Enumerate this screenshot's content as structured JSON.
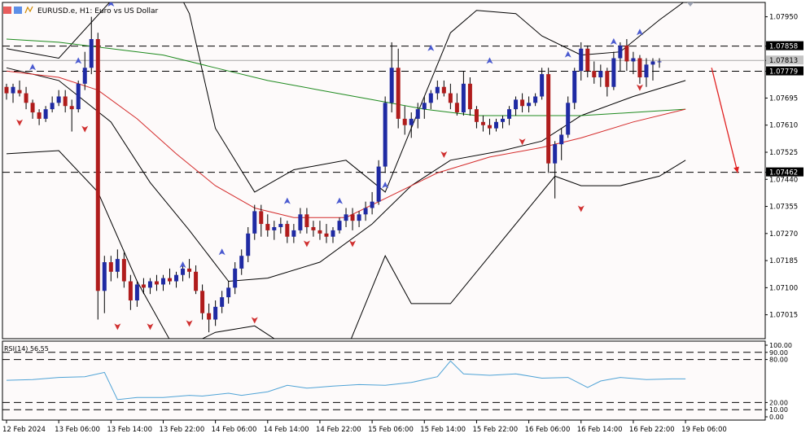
{
  "chart_data": {
    "type": "candlestick",
    "title": "EURUSD.e, H1:  Euro vs US Dollar",
    "price_axis": {
      "ticks": [
        1.0795,
        1.07858,
        1.07813,
        1.07779,
        1.07695,
        1.0761,
        1.07525,
        1.07462,
        1.0744,
        1.07355,
        1.0727,
        1.07185,
        1.071,
        1.07015
      ],
      "labels": [
        "1.07950",
        "1.07858",
        "1.07813",
        "1.07779",
        "1.07695",
        "1.07610",
        "1.07525",
        "1.07462",
        "1.07440",
        "1.07355",
        "1.07270",
        "1.07185",
        "1.07100",
        "1.07015"
      ],
      "ylim": [
        1.0694,
        1.07995
      ]
    },
    "horizontal_levels": [
      1.07858,
      1.07779,
      1.07462
    ],
    "highlighted_labels": [
      {
        "price": 1.07858,
        "label": "1.07858"
      },
      {
        "price": 1.07813,
        "label": "1.07813"
      },
      {
        "price": 1.07779,
        "label": "1.07779"
      },
      {
        "price": 1.07462,
        "label": "1.07462"
      }
    ],
    "time_axis": {
      "labels": [
        "12 Feb 2024",
        "13 Feb 06:00",
        "13 Feb 14:00",
        "13 Feb 22:00",
        "14 Feb 06:00",
        "14 Feb 14:00",
        "14 Feb 22:00",
        "15 Feb 06:00",
        "15 Feb 14:00",
        "15 Feb 22:00",
        "16 Feb 06:00",
        "16 Feb 14:00",
        "16 Feb 22:00",
        "19 Feb 06:00"
      ],
      "label_bar_index": [
        0,
        8,
        16,
        24,
        32,
        40,
        48,
        56,
        64,
        72,
        80,
        88,
        96,
        104
      ]
    },
    "candles": [
      [
        1.0773,
        1.0774,
        1.0769,
        1.0771
      ],
      [
        1.0771,
        1.0774,
        1.0768,
        1.0773
      ],
      [
        1.0772,
        1.0775,
        1.077,
        1.0771
      ],
      [
        1.0771,
        1.0773,
        1.0766,
        1.0768
      ],
      [
        1.0768,
        1.0769,
        1.0763,
        1.0765
      ],
      [
        1.0765,
        1.0766,
        1.0761,
        1.0763
      ],
      [
        1.0763,
        1.0767,
        1.0762,
        1.0766
      ],
      [
        1.0766,
        1.077,
        1.0765,
        1.0768
      ],
      [
        1.0768,
        1.0772,
        1.0767,
        1.077
      ],
      [
        1.077,
        1.0772,
        1.0765,
        1.0767
      ],
      [
        1.0767,
        1.0769,
        1.0759,
        1.0766
      ],
      [
        1.0766,
        1.0775,
        1.0765,
        1.0774
      ],
      [
        1.0774,
        1.0784,
        1.0772,
        1.0779
      ],
      [
        1.0779,
        1.0795,
        1.0777,
        1.0788
      ],
      [
        1.0788,
        1.079,
        1.07,
        1.0709
      ],
      [
        1.0709,
        1.072,
        1.0702,
        1.0718
      ],
      [
        1.0718,
        1.072,
        1.0712,
        1.0715
      ],
      [
        1.0715,
        1.0722,
        1.0713,
        1.0719
      ],
      [
        1.0719,
        1.0721,
        1.071,
        1.0712
      ],
      [
        1.0712,
        1.0714,
        1.0703,
        1.0706
      ],
      [
        1.0706,
        1.0712,
        1.0704,
        1.0711
      ],
      [
        1.0711,
        1.0713,
        1.0708,
        1.071
      ],
      [
        1.071,
        1.0713,
        1.0708,
        1.0712
      ],
      [
        1.0712,
        1.0714,
        1.0709,
        1.0711
      ],
      [
        1.0711,
        1.0714,
        1.0709,
        1.0713
      ],
      [
        1.0713,
        1.0716,
        1.0711,
        1.0712
      ],
      [
        1.0712,
        1.0715,
        1.071,
        1.0714
      ],
      [
        1.0714,
        1.0717,
        1.0712,
        1.0716
      ],
      [
        1.0716,
        1.0719,
        1.0713,
        1.0715
      ],
      [
        1.0715,
        1.0717,
        1.0708,
        1.0709
      ],
      [
        1.0709,
        1.0711,
        1.07,
        1.0702
      ],
      [
        1.0702,
        1.0705,
        1.0696,
        1.07
      ],
      [
        1.07,
        1.0706,
        1.0698,
        1.0704
      ],
      [
        1.0704,
        1.0709,
        1.0702,
        1.0707
      ],
      [
        1.0707,
        1.0712,
        1.0705,
        1.071
      ],
      [
        1.071,
        1.0718,
        1.0708,
        1.0716
      ],
      [
        1.0716,
        1.0722,
        1.0714,
        1.072
      ],
      [
        1.072,
        1.0729,
        1.0718,
        1.0727
      ],
      [
        1.0727,
        1.0736,
        1.0725,
        1.0734
      ],
      [
        1.0734,
        1.0736,
        1.0726,
        1.073
      ],
      [
        1.073,
        1.0733,
        1.0726,
        1.0728
      ],
      [
        1.0728,
        1.0731,
        1.0725,
        1.0729
      ],
      [
        1.0729,
        1.0732,
        1.0727,
        1.073
      ],
      [
        1.073,
        1.0731,
        1.0724,
        1.0726
      ],
      [
        1.0726,
        1.073,
        1.0724,
        1.0728
      ],
      [
        1.0728,
        1.0735,
        1.0727,
        1.0733
      ],
      [
        1.0733,
        1.0735,
        1.0727,
        1.0729
      ],
      [
        1.0729,
        1.0731,
        1.0726,
        1.0728
      ],
      [
        1.0728,
        1.0731,
        1.0725,
        1.0727
      ],
      [
        1.0727,
        1.073,
        1.0724,
        1.0726
      ],
      [
        1.0726,
        1.0729,
        1.0724,
        1.0728
      ],
      [
        1.0728,
        1.0732,
        1.0727,
        1.0731
      ],
      [
        1.0731,
        1.0735,
        1.0729,
        1.0733
      ],
      [
        1.0733,
        1.0735,
        1.0728,
        1.0731
      ],
      [
        1.0731,
        1.0734,
        1.0729,
        1.0733
      ],
      [
        1.0733,
        1.0737,
        1.0731,
        1.0735
      ],
      [
        1.0735,
        1.074,
        1.0733,
        1.0737
      ],
      [
        1.0737,
        1.075,
        1.0736,
        1.0748
      ],
      [
        1.0748,
        1.077,
        1.0746,
        1.0768
      ],
      [
        1.0768,
        1.0787,
        1.0765,
        1.0779
      ],
      [
        1.0779,
        1.0785,
        1.076,
        1.0763
      ],
      [
        1.0763,
        1.0767,
        1.0758,
        1.0761
      ],
      [
        1.0761,
        1.0765,
        1.0757,
        1.0763
      ],
      [
        1.0763,
        1.0768,
        1.076,
        1.0766
      ],
      [
        1.0766,
        1.077,
        1.0763,
        1.0768
      ],
      [
        1.0768,
        1.0772,
        1.0766,
        1.0771
      ],
      [
        1.0771,
        1.0775,
        1.0769,
        1.0773
      ],
      [
        1.0773,
        1.0775,
        1.077,
        1.0771
      ],
      [
        1.0771,
        1.0774,
        1.0766,
        1.0768
      ],
      [
        1.0768,
        1.0771,
        1.0764,
        1.0765
      ],
      [
        1.0765,
        1.0778,
        1.0764,
        1.0774
      ],
      [
        1.0774,
        1.0776,
        1.0764,
        1.0766
      ],
      [
        1.0766,
        1.0767,
        1.076,
        1.0762
      ],
      [
        1.0762,
        1.0764,
        1.0759,
        1.0761
      ],
      [
        1.0761,
        1.0763,
        1.0758,
        1.076
      ],
      [
        1.076,
        1.0763,
        1.0759,
        1.0762
      ],
      [
        1.0762,
        1.0764,
        1.076,
        1.0763
      ],
      [
        1.0763,
        1.0767,
        1.0761,
        1.0766
      ],
      [
        1.0766,
        1.077,
        1.0764,
        1.0769
      ],
      [
        1.0769,
        1.0771,
        1.0765,
        1.0767
      ],
      [
        1.0767,
        1.077,
        1.0765,
        1.0768
      ],
      [
        1.0768,
        1.0771,
        1.0767,
        1.077
      ],
      [
        1.077,
        1.0779,
        1.0769,
        1.0777
      ],
      [
        1.0777,
        1.0779,
        1.0746,
        1.0749
      ],
      [
        1.0749,
        1.0756,
        1.0738,
        1.0755
      ],
      [
        1.0755,
        1.076,
        1.075,
        1.0758
      ],
      [
        1.0758,
        1.077,
        1.0757,
        1.0768
      ],
      [
        1.0768,
        1.0779,
        1.0766,
        1.0778
      ],
      [
        1.0778,
        1.0787,
        1.0775,
        1.0785
      ],
      [
        1.0785,
        1.0786,
        1.0776,
        1.0778
      ],
      [
        1.0778,
        1.0781,
        1.0774,
        1.0776
      ],
      [
        1.0776,
        1.078,
        1.0773,
        1.0778
      ],
      [
        1.0778,
        1.0779,
        1.077,
        1.0773
      ],
      [
        1.0773,
        1.0784,
        1.0772,
        1.0782
      ],
      [
        1.0782,
        1.0787,
        1.0778,
        1.0786
      ],
      [
        1.0786,
        1.0788,
        1.0778,
        1.0781
      ],
      [
        1.0781,
        1.0784,
        1.0777,
        1.0782
      ],
      [
        1.0782,
        1.0783,
        1.0774,
        1.0776
      ],
      [
        1.0776,
        1.0782,
        1.0773,
        1.078
      ],
      [
        1.078,
        1.0782,
        1.0775,
        1.0781
      ],
      [
        1.0781,
        1.0782,
        1.0779,
        1.0781
      ]
    ],
    "ma_green": [
      [
        0,
        1.0788
      ],
      [
        8,
        1.0787
      ],
      [
        16,
        1.0785
      ],
      [
        24,
        1.0783
      ],
      [
        32,
        1.0779
      ],
      [
        40,
        1.0775
      ],
      [
        48,
        1.0772
      ],
      [
        56,
        1.0769
      ],
      [
        64,
        1.0766
      ],
      [
        72,
        1.0764
      ],
      [
        80,
        1.0764
      ],
      [
        88,
        1.0764
      ],
      [
        96,
        1.0765
      ],
      [
        104,
        1.0766
      ]
    ],
    "ma_red": [
      [
        0,
        1.0778
      ],
      [
        8,
        1.0776
      ],
      [
        14,
        1.0772
      ],
      [
        20,
        1.0763
      ],
      [
        26,
        1.0752
      ],
      [
        32,
        1.0742
      ],
      [
        38,
        1.0735
      ],
      [
        44,
        1.0732
      ],
      [
        52,
        1.0732
      ],
      [
        58,
        1.0738
      ],
      [
        66,
        1.0746
      ],
      [
        74,
        1.0751
      ],
      [
        82,
        1.0754
      ],
      [
        88,
        1.0757
      ],
      [
        96,
        1.0762
      ],
      [
        104,
        1.0766
      ]
    ],
    "bollinger_upper": [
      [
        0,
        1.0785
      ],
      [
        8,
        1.0782
      ],
      [
        16,
        1.08
      ],
      [
        22,
        1.082
      ],
      [
        28,
        1.0796
      ],
      [
        32,
        1.076
      ],
      [
        38,
        1.074
      ],
      [
        44,
        1.0747
      ],
      [
        52,
        1.075
      ],
      [
        58,
        1.074
      ],
      [
        62,
        1.076
      ],
      [
        68,
        1.079
      ],
      [
        72,
        1.0797
      ],
      [
        78,
        1.0796
      ],
      [
        82,
        1.0789
      ],
      [
        88,
        1.0783
      ],
      [
        94,
        1.0784
      ],
      [
        100,
        1.0794
      ],
      [
        104,
        1.08
      ]
    ],
    "bollinger_middle": [
      [
        0,
        1.0779
      ],
      [
        8,
        1.0775
      ],
      [
        16,
        1.0762
      ],
      [
        22,
        1.0743
      ],
      [
        28,
        1.0728
      ],
      [
        34,
        1.0712
      ],
      [
        40,
        1.0713
      ],
      [
        48,
        1.0718
      ],
      [
        56,
        1.073
      ],
      [
        62,
        1.0742
      ],
      [
        68,
        1.075
      ],
      [
        76,
        1.0753
      ],
      [
        82,
        1.0756
      ],
      [
        88,
        1.0764
      ],
      [
        96,
        1.077
      ],
      [
        104,
        1.0775
      ]
    ],
    "bollinger_lower": [
      [
        0,
        1.0752
      ],
      [
        8,
        1.0753
      ],
      [
        14,
        1.074
      ],
      [
        20,
        1.0712
      ],
      [
        26,
        1.069
      ],
      [
        32,
        1.0696
      ],
      [
        38,
        1.0698
      ],
      [
        44,
        1.069
      ],
      [
        52,
        1.069
      ],
      [
        58,
        1.072
      ],
      [
        62,
        1.0705
      ],
      [
        68,
        1.0705
      ],
      [
        74,
        1.072
      ],
      [
        80,
        1.0735
      ],
      [
        84,
        1.0745
      ],
      [
        88,
        1.0742
      ],
      [
        94,
        1.0742
      ],
      [
        100,
        1.0745
      ],
      [
        104,
        1.075
      ]
    ],
    "up_arrows": [
      [
        4,
        1.0779
      ],
      [
        11,
        1.0781
      ],
      [
        16,
        1.0799
      ],
      [
        27,
        1.0717
      ],
      [
        33,
        1.0721
      ],
      [
        43,
        1.0737
      ],
      [
        51,
        1.0737
      ],
      [
        58,
        1.0742
      ],
      [
        65,
        1.0785
      ],
      [
        74,
        1.0781
      ],
      [
        86,
        1.0783
      ],
      [
        93,
        1.0787
      ],
      [
        97,
        1.079
      ]
    ],
    "down_arrows": [
      [
        2,
        1.0762
      ],
      [
        12,
        1.076
      ],
      [
        17,
        1.0698
      ],
      [
        22,
        1.0698
      ],
      [
        28,
        1.0699
      ],
      [
        38,
        1.07
      ],
      [
        46,
        1.0724
      ],
      [
        53,
        1.0724
      ],
      [
        67,
        1.0752
      ],
      [
        79,
        1.0756
      ],
      [
        88,
        1.0735
      ],
      [
        97,
        1.0773
      ]
    ],
    "projection_arrow": {
      "from": [
        108,
        1.0779
      ],
      "to": [
        112,
        1.0746
      ]
    },
    "rsi": {
      "label": "RSI(14) 56.55",
      "ylim": [
        0,
        100
      ],
      "ticks": [
        "100.00",
        "90.00",
        "80.00",
        "20.00",
        "10.00",
        "0.00"
      ],
      "levels": [
        90,
        80,
        20,
        10
      ],
      "values": [
        [
          0,
          51
        ],
        [
          4,
          52
        ],
        [
          8,
          55
        ],
        [
          12,
          56
        ],
        [
          15,
          62
        ],
        [
          17,
          24
        ],
        [
          20,
          27
        ],
        [
          24,
          27
        ],
        [
          28,
          30
        ],
        [
          30,
          29
        ],
        [
          34,
          33
        ],
        [
          36,
          30
        ],
        [
          40,
          35
        ],
        [
          43,
          44
        ],
        [
          46,
          40
        ],
        [
          50,
          43
        ],
        [
          54,
          45
        ],
        [
          58,
          44
        ],
        [
          62,
          48
        ],
        [
          66,
          56
        ],
        [
          68,
          78
        ],
        [
          70,
          60
        ],
        [
          74,
          58
        ],
        [
          78,
          60
        ],
        [
          82,
          54
        ],
        [
          86,
          55
        ],
        [
          89,
          41
        ],
        [
          91,
          50
        ],
        [
          94,
          55
        ],
        [
          98,
          52
        ],
        [
          102,
          53
        ],
        [
          104,
          53
        ]
      ]
    }
  }
}
